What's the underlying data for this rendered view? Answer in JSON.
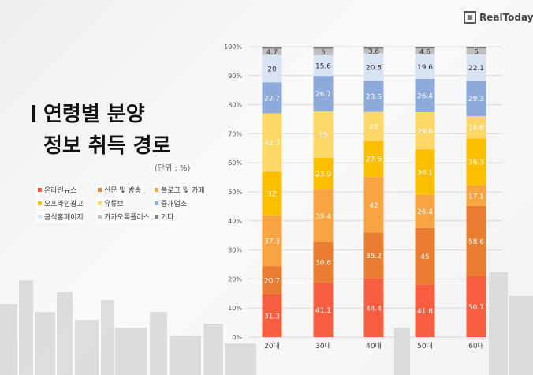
{
  "logo": {
    "text": "RealToday"
  },
  "chart_data": {
    "type": "bar",
    "stacked": "percent",
    "title": "연령별 분양 정보 취득 경로",
    "unit": "(단위 : %)",
    "categories": [
      "20대",
      "30대",
      "40대",
      "50대",
      "60대"
    ],
    "yticks": [
      "0%",
      "10%",
      "20%",
      "30%",
      "40%",
      "50%",
      "60%",
      "70%",
      "80%",
      "90%",
      "100%"
    ],
    "ylim": [
      0,
      100
    ],
    "grid": true,
    "legend_position": "left",
    "series": [
      {
        "name": "온라인뉴스",
        "color": "#f55f3f",
        "values": [
          31.3,
          41.1,
          44.4,
          41.8,
          50.7
        ],
        "label_color": "#ffffff"
      },
      {
        "name": "신문 및 방송",
        "color": "#e97d30",
        "values": [
          20.7,
          30.6,
          35.2,
          45,
          58.6
        ],
        "label_color": "#ffffff"
      },
      {
        "name": "블로그 및 카페",
        "color": "#f9a443",
        "values": [
          37.3,
          39.4,
          42,
          26.4,
          17.1
        ],
        "label_color": "#ffffff"
      },
      {
        "name": "오프라인광고",
        "color": "#fbbf00",
        "values": [
          32,
          23.9,
          27.6,
          36.1,
          39.3
        ],
        "label_color": "#ffffff"
      },
      {
        "name": "유튜브",
        "color": "#fdd868",
        "values": [
          42.7,
          35,
          22,
          29.6,
          18.6
        ],
        "label_color": "#ffffff"
      },
      {
        "name": "중개업소",
        "color": "#8eaadb",
        "values": [
          22.7,
          26.7,
          23.6,
          26.4,
          29.3
        ],
        "label_color": "#ffffff"
      },
      {
        "name": "공식홈페이지",
        "color": "#dae3f3",
        "values": [
          20,
          15.6,
          20.8,
          19.6,
          22.1
        ],
        "label_color": "#333333"
      },
      {
        "name": "카카오톡플러스",
        "color": "#bfbfbf",
        "values": [
          4.7,
          5,
          3.6,
          4.6,
          5
        ],
        "label_color": "#333333"
      },
      {
        "name": "기타",
        "color": "#7f7f7f",
        "values": [
          1.5,
          1.5,
          1.5,
          1.5,
          1.5
        ],
        "label_color": null,
        "labels_shown": false
      }
    ]
  }
}
